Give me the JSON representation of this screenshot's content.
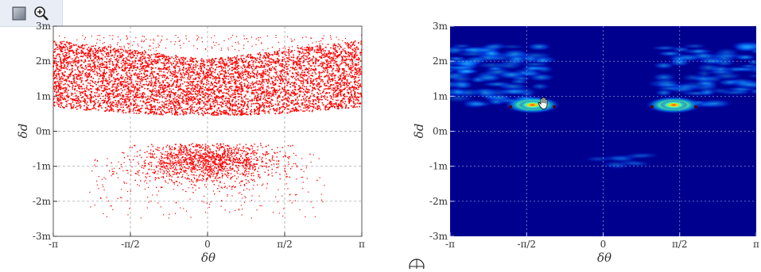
{
  "toolbar": {
    "select_icon": "square-select-icon",
    "zoom_icon": "zoom-in-icon"
  },
  "chart_data": [
    {
      "type": "scatter",
      "title": "",
      "xlabel": "δθ",
      "ylabel": "δd",
      "x_ticks": [
        "-π",
        "-π/2",
        "0",
        "π/2",
        "π"
      ],
      "y_ticks": [
        "-3m",
        "-2m",
        "-1m",
        "0m",
        "1m",
        "2m",
        "3m"
      ],
      "xlim": [
        -3.1416,
        3.1416
      ],
      "ylim": [
        -3,
        3
      ],
      "grid": true,
      "color": "#ff0000",
      "clusters": [
        {
          "name": "upper band",
          "x_range": [
            -3.1416,
            3.1416
          ],
          "y_range": [
            0.4,
            2.7
          ]
        },
        {
          "name": "lower cluster",
          "x_range": [
            -2.5,
            2.5
          ],
          "y_range": [
            -2.5,
            -0.4
          ]
        }
      ]
    },
    {
      "type": "heatmap",
      "title": "",
      "xlabel": "δθ",
      "ylabel": "δd",
      "x_ticks": [
        "-π",
        "-π/2",
        "0",
        "π/2",
        "π"
      ],
      "y_ticks": [
        "-3m",
        "-2m",
        "-1m",
        "0m",
        "1m",
        "2m",
        "3m"
      ],
      "xlim": [
        -3.1416,
        3.1416
      ],
      "ylim": [
        -3,
        3
      ],
      "grid": true,
      "colormap": "jet",
      "peaks": [
        {
          "x": -1.45,
          "y": 0.75
        },
        {
          "x": 1.45,
          "y": 0.75
        }
      ]
    }
  ],
  "cursor": {
    "icon": "hand-cursor-icon"
  },
  "footer": {
    "icon": "crosshair-icon"
  }
}
